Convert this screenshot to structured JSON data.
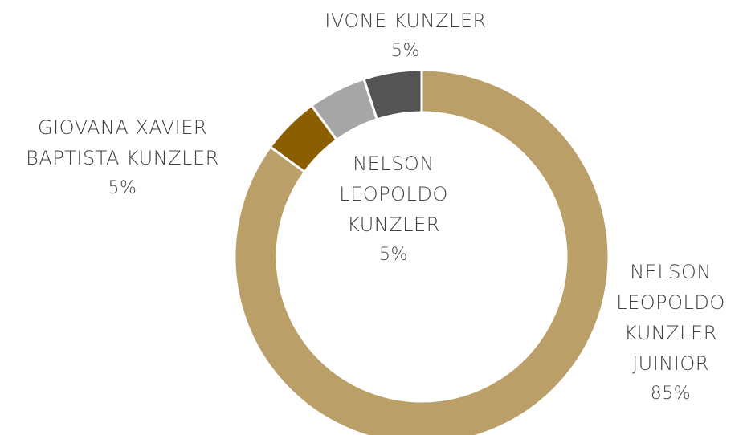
{
  "chart_data": {
    "type": "donut",
    "categories": [
      "NELSON LEOPOLDO KUNZLER JUINIOR",
      "GIOVANA XAVIER BAPTISTA KUNZLER",
      "NELSON LEOPOLDO KUNZLER",
      "IVONE KUNZLER"
    ],
    "values": [
      85,
      5,
      5,
      5
    ],
    "value_labels": [
      "85%",
      "5%",
      "5%",
      "5%"
    ],
    "colors": [
      "#ba9f68",
      "#8b5e00",
      "#a6a6a6",
      "#545454"
    ]
  }
}
